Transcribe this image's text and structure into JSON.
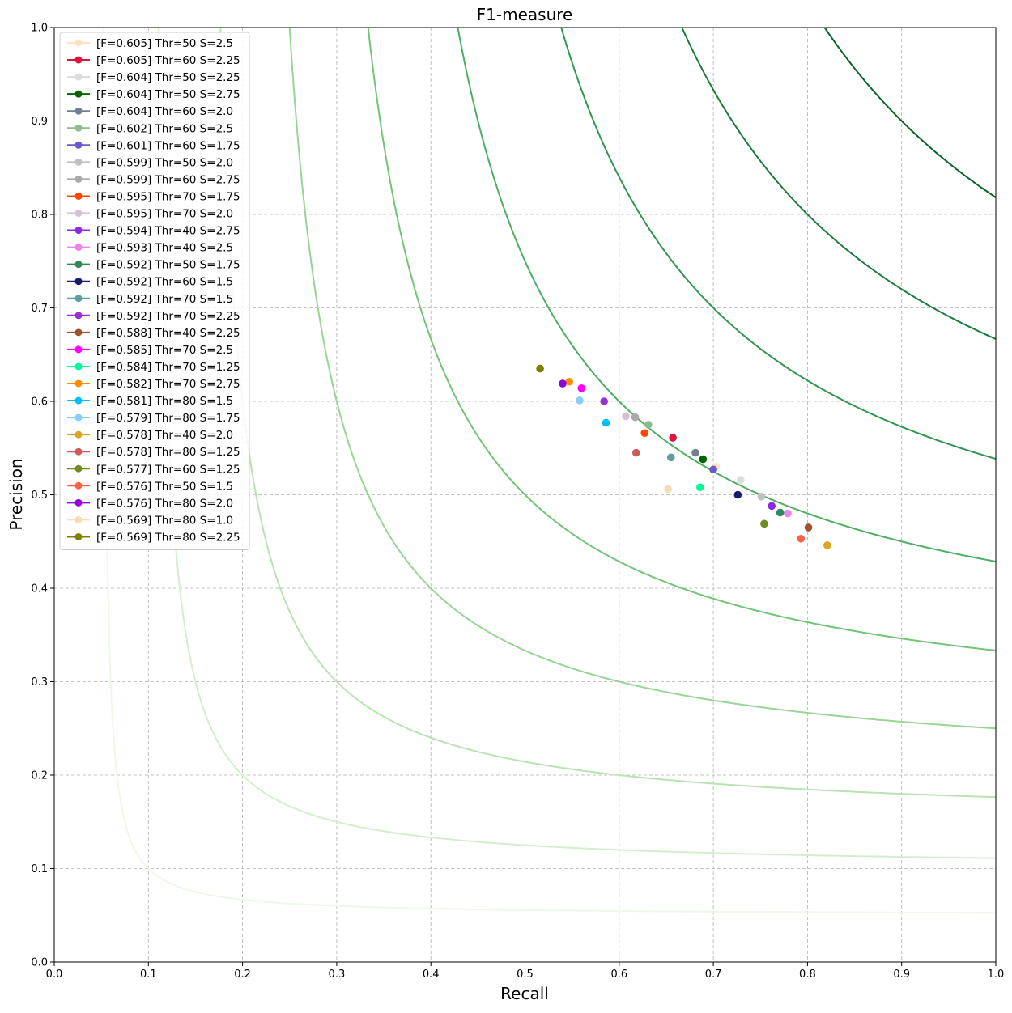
{
  "chart_data": {
    "type": "scatter",
    "title": "F1-measure",
    "xlabel": "Recall",
    "ylabel": "Precision",
    "xlim": [
      0.0,
      1.0
    ],
    "ylim": [
      0.0,
      1.0
    ],
    "xticks": [
      "0.0",
      "0.1",
      "0.2",
      "0.3",
      "0.4",
      "0.5",
      "0.6",
      "0.7",
      "0.8",
      "0.9",
      "1.0"
    ],
    "yticks": [
      "0.0",
      "0.1",
      "0.2",
      "0.3",
      "0.4",
      "0.5",
      "0.6",
      "0.7",
      "0.8",
      "0.9",
      "1.0"
    ],
    "grid": true,
    "legend_position": "top-left",
    "iso_f1_curves": [
      {
        "f": 0.1,
        "color": "#edf8e9"
      },
      {
        "f": 0.2,
        "color": "#d3eecd"
      },
      {
        "f": 0.3,
        "color": "#b8e3b2"
      },
      {
        "f": 0.4,
        "color": "#98d594"
      },
      {
        "f": 0.5,
        "color": "#73c476"
      },
      {
        "f": 0.6,
        "color": "#4daf62"
      },
      {
        "f": 0.7,
        "color": "#2f974e"
      },
      {
        "f": 0.8,
        "color": "#1b7c3d"
      },
      {
        "f": 0.9,
        "color": "#0a6429"
      }
    ],
    "series": [
      {
        "name": "[F=0.605] Thr=50 S=2.5",
        "color": "#ffe4c4",
        "x": 0.703,
        "y": 0.53
      },
      {
        "name": "[F=0.605] Thr=60 S=2.25",
        "color": "#dc143c",
        "x": 0.657,
        "y": 0.561
      },
      {
        "name": "[F=0.604] Thr=50 S=2.25",
        "color": "#dcdcdc",
        "x": 0.729,
        "y": 0.516
      },
      {
        "name": "[F=0.604] Thr=50 S=2.75",
        "color": "#006400",
        "x": 0.689,
        "y": 0.538
      },
      {
        "name": "[F=0.604] Thr=60 S=2.0",
        "color": "#708090",
        "x": 0.681,
        "y": 0.545
      },
      {
        "name": "[F=0.602] Thr=60 S=2.5",
        "color": "#8fbc8f",
        "x": 0.631,
        "y": 0.575
      },
      {
        "name": "[F=0.601] Thr=60 S=1.75",
        "color": "#6a5acd",
        "x": 0.7,
        "y": 0.527
      },
      {
        "name": "[F=0.599] Thr=50 S=2.0",
        "color": "#c0c0c0",
        "x": 0.751,
        "y": 0.498
      },
      {
        "name": "[F=0.599] Thr=60 S=2.75",
        "color": "#a9a9a9",
        "x": 0.617,
        "y": 0.583
      },
      {
        "name": "[F=0.595] Thr=70 S=1.75",
        "color": "#ff4500",
        "x": 0.627,
        "y": 0.566
      },
      {
        "name": "[F=0.595] Thr=70 S=2.0",
        "color": "#d8bfd8",
        "x": 0.607,
        "y": 0.584
      },
      {
        "name": "[F=0.594] Thr=40 S=2.75",
        "color": "#8a2be2",
        "x": 0.762,
        "y": 0.488
      },
      {
        "name": "[F=0.593] Thr=40 S=2.5",
        "color": "#ee82ee",
        "x": 0.779,
        "y": 0.48
      },
      {
        "name": "[F=0.592] Thr=50 S=1.75",
        "color": "#2e8b57",
        "x": 0.771,
        "y": 0.481
      },
      {
        "name": "[F=0.592] Thr=60 S=1.5",
        "color": "#191970",
        "x": 0.726,
        "y": 0.5
      },
      {
        "name": "[F=0.592] Thr=70 S=1.5",
        "color": "#5f9ea0",
        "x": 0.655,
        "y": 0.54
      },
      {
        "name": "[F=0.592] Thr=70 S=2.25",
        "color": "#9932cc",
        "x": 0.584,
        "y": 0.6
      },
      {
        "name": "[F=0.588] Thr=40 S=2.25",
        "color": "#a0522d",
        "x": 0.801,
        "y": 0.465
      },
      {
        "name": "[F=0.585] Thr=70 S=2.5",
        "color": "#ff00ff",
        "x": 0.56,
        "y": 0.614
      },
      {
        "name": "[F=0.584] Thr=70 S=1.25",
        "color": "#00fa9a",
        "x": 0.686,
        "y": 0.508
      },
      {
        "name": "[F=0.582] Thr=70 S=2.75",
        "color": "#ff8c00",
        "x": 0.547,
        "y": 0.621
      },
      {
        "name": "[F=0.581] Thr=80 S=1.5",
        "color": "#00bfff",
        "x": 0.586,
        "y": 0.577
      },
      {
        "name": "[F=0.579] Thr=80 S=1.75",
        "color": "#87cefa",
        "x": 0.558,
        "y": 0.601
      },
      {
        "name": "[F=0.578] Thr=40 S=2.0",
        "color": "#daa520",
        "x": 0.821,
        "y": 0.446
      },
      {
        "name": "[F=0.578] Thr=80 S=1.25",
        "color": "#cd5c5c",
        "x": 0.618,
        "y": 0.545
      },
      {
        "name": "[F=0.577] Thr=60 S=1.25",
        "color": "#6b8e23",
        "x": 0.754,
        "y": 0.469
      },
      {
        "name": "[F=0.576] Thr=50 S=1.5",
        "color": "#ff6347",
        "x": 0.793,
        "y": 0.453
      },
      {
        "name": "[F=0.576] Thr=80 S=2.0",
        "color": "#9400d3",
        "x": 0.54,
        "y": 0.619
      },
      {
        "name": "[F=0.569] Thr=80 S=1.0",
        "color": "#f5deb3",
        "x": 0.652,
        "y": 0.506
      },
      {
        "name": "[F=0.569] Thr=80 S=2.25",
        "color": "#808000",
        "x": 0.516,
        "y": 0.635
      }
    ]
  }
}
